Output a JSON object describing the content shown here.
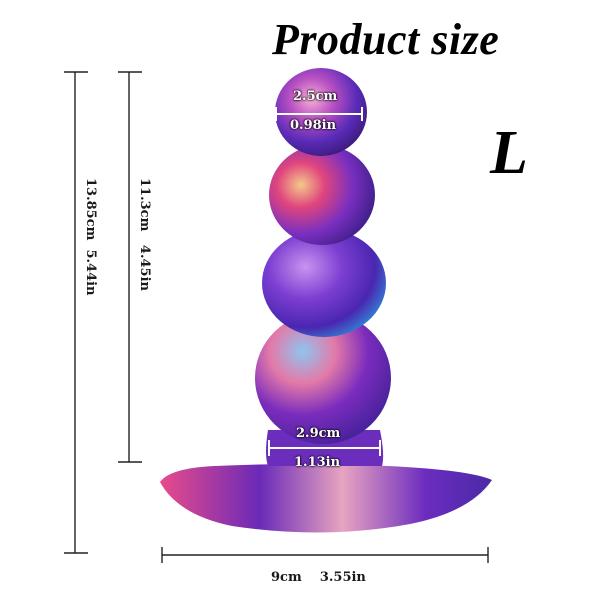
{
  "header": {
    "title": "Product size",
    "size": "L"
  },
  "dimensions": {
    "total_height": {
      "cm": "13.85cm",
      "in": "5.44in"
    },
    "insert_height": {
      "cm": "11.3cm",
      "in": "4.45in"
    },
    "top_diameter": {
      "cm": "2.5cm",
      "in": "0.98in"
    },
    "neck_diameter": {
      "cm": "2.9cm",
      "in": "1.13in"
    },
    "base_width": {
      "cm": "9cm",
      "in": "3.55in"
    }
  },
  "colors": {
    "purple": "#5b2bb8",
    "pink": "#e0457d",
    "blue": "#3b6fd6",
    "gold": "#e9b96a"
  }
}
